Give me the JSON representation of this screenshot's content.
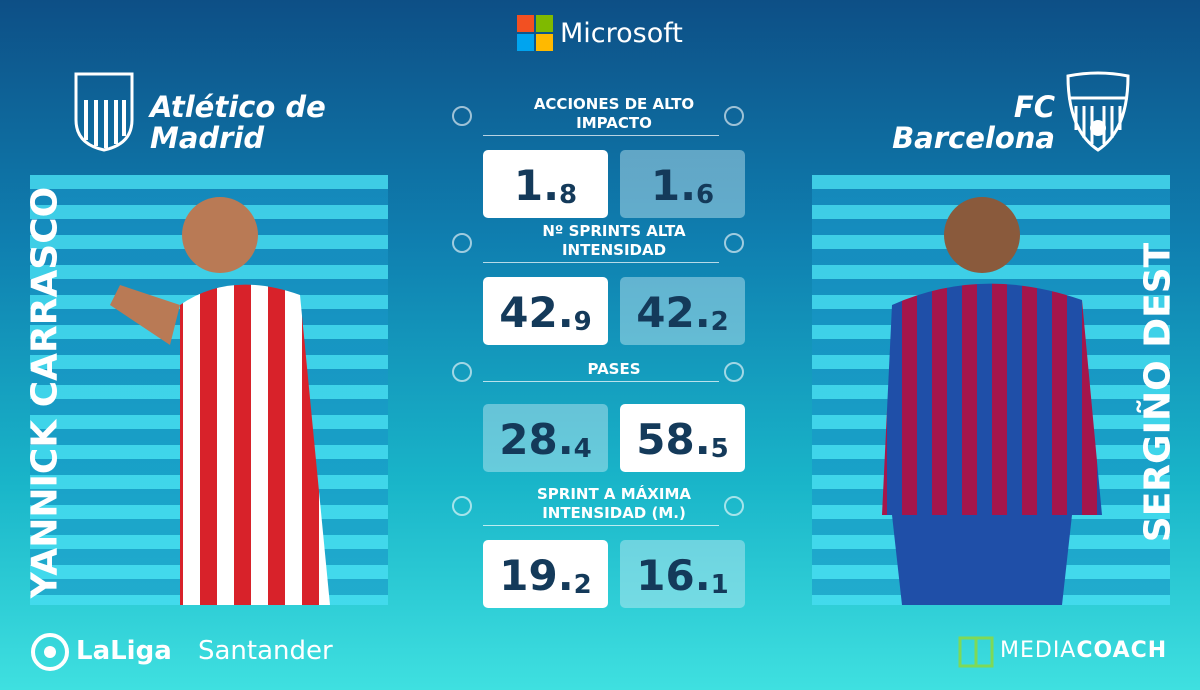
{
  "header": {
    "brand": "Microsoft"
  },
  "left": {
    "team": "Atlético de Madrid",
    "player": "YANNICK CARRASCO"
  },
  "right": {
    "team": "FC Barcelona",
    "player": "SERGIÑO DEST"
  },
  "stats": [
    {
      "label": "ACCIONES DE ALTO IMPACTO",
      "values": [
        1.8,
        1.6
      ]
    },
    {
      "label": "Nº SPRINTS ALTA INTENSIDAD",
      "values": [
        42.9,
        42.2
      ]
    },
    {
      "label": "PASES",
      "values": [
        28.4,
        58.5
      ]
    },
    {
      "label": "SPRINT A MÁXIMA INTENSIDAD (M.)",
      "values": [
        19.2,
        16.1
      ]
    }
  ],
  "footer": {
    "league": "LaLiga",
    "sponsor": "Santander",
    "provider_light": "MEDIA",
    "provider_bold": "COACH"
  }
}
